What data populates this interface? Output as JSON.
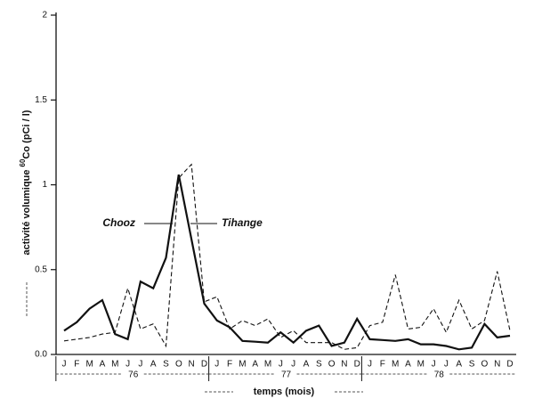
{
  "chart_data": {
    "type": "line",
    "ylabel_parts": [
      "activité volumique ",
      "60",
      "Co (pCi / l)"
    ],
    "xlabel": "temps (mois)",
    "categories": [
      "J",
      "F",
      "M",
      "A",
      "M",
      "J",
      "J",
      "A",
      "S",
      "O",
      "N",
      "D",
      "J",
      "F",
      "M",
      "A",
      "M",
      "J",
      "J",
      "A",
      "S",
      "O",
      "N",
      "D",
      "J",
      "F",
      "M",
      "A",
      "M",
      "J",
      "J",
      "A",
      "S",
      "O",
      "N",
      "D"
    ],
    "year_labels": [
      "76",
      "77",
      "78"
    ],
    "series": [
      {
        "name": "Chooz",
        "color": "#111111",
        "dash": false,
        "values": [
          0.14,
          0.19,
          0.27,
          0.32,
          0.12,
          0.09,
          0.43,
          0.39,
          0.57,
          1.06,
          0.68,
          0.3,
          0.2,
          0.16,
          0.08,
          0.075,
          0.07,
          0.13,
          0.07,
          0.14,
          0.17,
          0.05,
          0.07,
          0.21,
          0.09,
          0.085,
          0.08,
          0.09,
          0.06,
          0.06,
          0.05,
          0.03,
          0.04,
          0.18,
          0.1,
          0.11
        ]
      },
      {
        "name": "Tihange",
        "color": "#111111",
        "dash": true,
        "values": [
          0.08,
          0.09,
          0.1,
          0.12,
          0.13,
          0.39,
          0.15,
          0.18,
          0.05,
          1.04,
          1.12,
          0.31,
          0.34,
          0.15,
          0.2,
          0.17,
          0.21,
          0.1,
          0.14,
          0.07,
          0.07,
          0.07,
          0.03,
          0.04,
          0.17,
          0.19,
          0.47,
          0.15,
          0.16,
          0.27,
          0.13,
          0.32,
          0.15,
          0.2,
          0.49,
          0.14
        ]
      }
    ],
    "ylim": [
      0,
      2
    ],
    "yticks": [
      {
        "value": 0,
        "label": "0.0"
      },
      0.5,
      1,
      1.5,
      2
    ]
  }
}
